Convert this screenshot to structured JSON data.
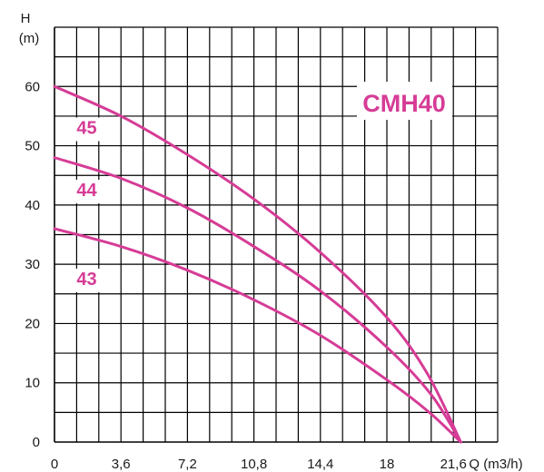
{
  "chart_data": {
    "type": "line",
    "title": "CMH40",
    "xlabel": "Q (m3/h)",
    "ylabel_line1": "H",
    "ylabel_line2": "(m)",
    "xlim": [
      0,
      24
    ],
    "ylim": [
      0,
      70
    ],
    "grid": true,
    "x_ticks": [
      {
        "value": 0,
        "label": "0"
      },
      {
        "value": 3.6,
        "label": "3,6"
      },
      {
        "value": 7.2,
        "label": "7,2"
      },
      {
        "value": 10.8,
        "label": "10,8"
      },
      {
        "value": 14.4,
        "label": "14,4"
      },
      {
        "value": 18,
        "label": "18"
      },
      {
        "value": 21.6,
        "label": "21,6"
      }
    ],
    "y_ticks": [
      {
        "value": 0,
        "label": "0"
      },
      {
        "value": 10,
        "label": "10"
      },
      {
        "value": 20,
        "label": "20"
      },
      {
        "value": 30,
        "label": "30"
      },
      {
        "value": 40,
        "label": "40"
      },
      {
        "value": 50,
        "label": "50"
      },
      {
        "value": 60,
        "label": "60"
      }
    ],
    "accent_color": "#d63c96",
    "series": [
      {
        "name": "45",
        "label_at": [
          1.2,
          52
        ],
        "points": [
          [
            0,
            60
          ],
          [
            3.6,
            55
          ],
          [
            7.2,
            48.5
          ],
          [
            10.8,
            41
          ],
          [
            14.4,
            32
          ],
          [
            18,
            21
          ],
          [
            20.2,
            11.5
          ],
          [
            22,
            0
          ]
        ]
      },
      {
        "name": "44",
        "label_at": [
          1.2,
          41.5
        ],
        "points": [
          [
            0,
            48
          ],
          [
            3.6,
            44.5
          ],
          [
            7.2,
            39.5
          ],
          [
            10.8,
            33
          ],
          [
            14.4,
            25.5
          ],
          [
            18,
            16
          ],
          [
            20.4,
            8
          ],
          [
            22,
            0
          ]
        ]
      },
      {
        "name": "43",
        "label_at": [
          1.2,
          26.5
        ],
        "points": [
          [
            0,
            36
          ],
          [
            3.6,
            33
          ],
          [
            7.2,
            29
          ],
          [
            10.8,
            24
          ],
          [
            14.4,
            18
          ],
          [
            18,
            10.5
          ],
          [
            20.3,
            5
          ],
          [
            22,
            0
          ]
        ]
      }
    ]
  }
}
